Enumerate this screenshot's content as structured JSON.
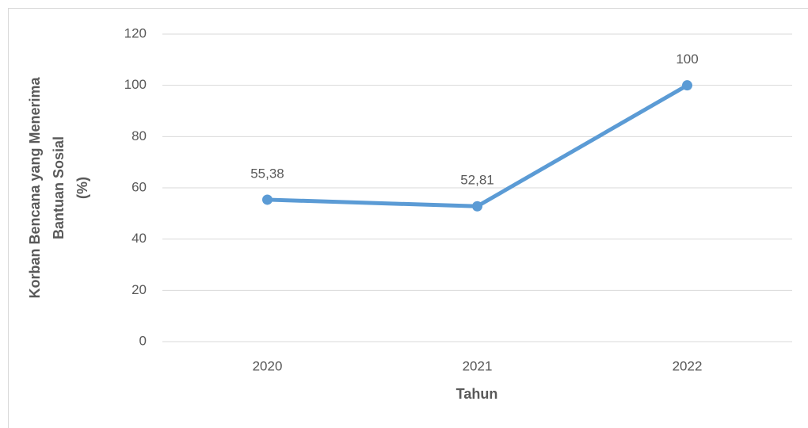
{
  "chart_data": {
    "type": "line",
    "y_label": [
      "Korban Bencana yang Menerima",
      "Bantuan Sosial",
      "(%)"
    ],
    "x_label": "Tahun",
    "categories": [
      "2020",
      "2021",
      "2022"
    ],
    "series": [
      {
        "name": null,
        "color": "#5b9bd5",
        "values": [
          55.38,
          52.81,
          100
        ],
        "value_labels": [
          "55,38",
          "52,81",
          "100"
        ]
      }
    ],
    "ylim": [
      0,
      120
    ],
    "yticks": [
      0,
      20,
      40,
      60,
      80,
      100,
      120
    ],
    "grid": true
  }
}
